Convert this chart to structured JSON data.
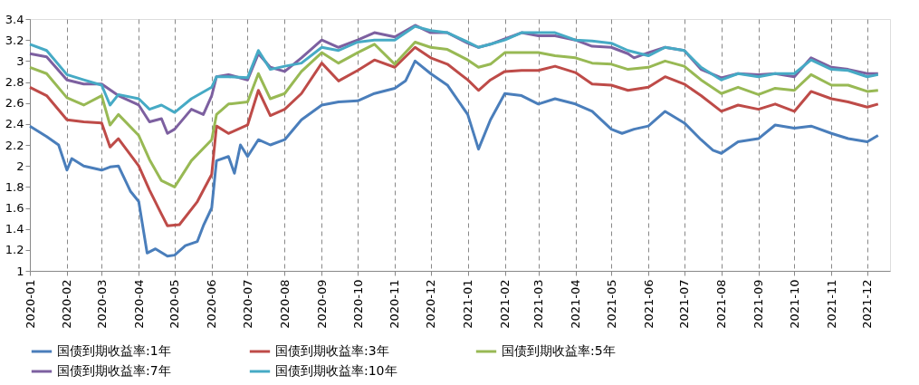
{
  "chart_data": {
    "type": "line",
    "xlim": [
      "2020-01-01",
      "2021-12-20"
    ],
    "xticks": [
      "2020-01",
      "2020-02",
      "2020-03",
      "2020-04",
      "2020-05",
      "2020-06",
      "2020-07",
      "2020-08",
      "2020-09",
      "2020-10",
      "2020-11",
      "2020-12",
      "2021-01",
      "2021-02",
      "2021-03",
      "2021-04",
      "2021-05",
      "2021-06",
      "2021-07",
      "2021-08",
      "2021-09",
      "2021-10",
      "2021-11",
      "2021-12"
    ],
    "ylim": [
      1,
      3.4
    ],
    "yticks": [
      1,
      1.2,
      1.4,
      1.6,
      1.8,
      2,
      2.2,
      2.4,
      2.6,
      2.8,
      3,
      3.2,
      3.4
    ],
    "grid": "x",
    "legend": "bottom",
    "marker": "none",
    "line_style": "solid",
    "series": [
      {
        "name": "国债到期收益率:1年",
        "color": "#4a7ebb",
        "x": [
          "2020-01-01",
          "2020-01-15",
          "2020-01-25",
          "2020-02-01",
          "2020-02-05",
          "2020-02-15",
          "2020-03-01",
          "2020-03-08",
          "2020-03-15",
          "2020-03-25",
          "2020-04-01",
          "2020-04-08",
          "2020-04-15",
          "2020-04-25",
          "2020-05-01",
          "2020-05-10",
          "2020-05-20",
          "2020-05-25",
          "2020-06-01",
          "2020-06-05",
          "2020-06-15",
          "2020-06-20",
          "2020-06-25",
          "2020-07-01",
          "2020-07-10",
          "2020-07-20",
          "2020-08-01",
          "2020-08-15",
          "2020-09-01",
          "2020-09-15",
          "2020-10-01",
          "2020-10-15",
          "2020-11-01",
          "2020-11-10",
          "2020-11-18",
          "2020-12-01",
          "2020-12-15",
          "2021-01-01",
          "2021-01-10",
          "2021-01-20",
          "2021-02-01",
          "2021-02-15",
          "2021-03-01",
          "2021-03-15",
          "2021-04-01",
          "2021-04-15",
          "2021-05-01",
          "2021-05-10",
          "2021-05-20",
          "2021-06-01",
          "2021-06-15",
          "2021-07-01",
          "2021-07-15",
          "2021-07-25",
          "2021-08-01",
          "2021-08-15",
          "2021-09-01",
          "2021-09-15",
          "2021-10-01",
          "2021-10-15",
          "2021-11-01",
          "2021-11-15",
          "2021-12-01",
          "2021-12-10"
        ],
        "values": [
          2.38,
          2.28,
          2.2,
          1.96,
          2.07,
          2.0,
          1.96,
          1.99,
          2.0,
          1.76,
          1.66,
          1.17,
          1.21,
          1.14,
          1.15,
          1.24,
          1.28,
          1.43,
          1.6,
          2.05,
          2.09,
          1.93,
          2.2,
          2.09,
          2.25,
          2.2,
          2.25,
          2.44,
          2.58,
          2.61,
          2.62,
          2.69,
          2.74,
          2.81,
          3.0,
          2.88,
          2.77,
          2.49,
          2.16,
          2.44,
          2.69,
          2.67,
          2.59,
          2.64,
          2.59,
          2.52,
          2.35,
          2.31,
          2.35,
          2.38,
          2.52,
          2.41,
          2.25,
          2.15,
          2.12,
          2.23,
          2.26,
          2.39,
          2.36,
          2.38,
          2.31,
          2.26,
          2.23,
          2.29
        ]
      },
      {
        "name": "国债到期收益率:3年",
        "color": "#be4b48",
        "x": [
          "2020-01-01",
          "2020-01-15",
          "2020-02-01",
          "2020-02-15",
          "2020-03-01",
          "2020-03-08",
          "2020-03-15",
          "2020-04-01",
          "2020-04-10",
          "2020-04-20",
          "2020-04-25",
          "2020-05-05",
          "2020-05-20",
          "2020-06-01",
          "2020-06-05",
          "2020-06-15",
          "2020-07-01",
          "2020-07-10",
          "2020-07-20",
          "2020-08-01",
          "2020-08-15",
          "2020-09-01",
          "2020-09-15",
          "2020-10-01",
          "2020-10-15",
          "2020-11-01",
          "2020-11-18",
          "2020-12-01",
          "2020-12-15",
          "2021-01-01",
          "2021-01-10",
          "2021-01-20",
          "2021-02-01",
          "2021-02-15",
          "2021-03-01",
          "2021-03-15",
          "2021-04-01",
          "2021-04-15",
          "2021-05-01",
          "2021-05-15",
          "2021-06-01",
          "2021-06-15",
          "2021-07-01",
          "2021-07-15",
          "2021-08-01",
          "2021-08-15",
          "2021-09-01",
          "2021-09-15",
          "2021-10-01",
          "2021-10-15",
          "2021-11-01",
          "2021-11-15",
          "2021-12-01",
          "2021-12-10"
        ],
        "values": [
          2.75,
          2.67,
          2.44,
          2.42,
          2.41,
          2.18,
          2.26,
          2.0,
          1.77,
          1.54,
          1.43,
          1.44,
          1.66,
          1.92,
          2.38,
          2.31,
          2.39,
          2.72,
          2.48,
          2.54,
          2.69,
          2.98,
          2.81,
          2.91,
          3.01,
          2.94,
          3.13,
          3.03,
          2.97,
          2.82,
          2.72,
          2.82,
          2.9,
          2.91,
          2.91,
          2.95,
          2.89,
          2.78,
          2.77,
          2.72,
          2.75,
          2.85,
          2.78,
          2.67,
          2.52,
          2.58,
          2.54,
          2.59,
          2.52,
          2.71,
          2.64,
          2.61,
          2.56,
          2.59
        ]
      },
      {
        "name": "国债到期收益率:5年",
        "color": "#98b954",
        "x": [
          "2020-01-01",
          "2020-01-15",
          "2020-02-01",
          "2020-02-15",
          "2020-03-01",
          "2020-03-08",
          "2020-03-15",
          "2020-04-01",
          "2020-04-10",
          "2020-04-20",
          "2020-05-01",
          "2020-05-15",
          "2020-06-01",
          "2020-06-05",
          "2020-06-15",
          "2020-07-01",
          "2020-07-10",
          "2020-07-20",
          "2020-08-01",
          "2020-08-15",
          "2020-09-01",
          "2020-09-15",
          "2020-10-01",
          "2020-10-15",
          "2020-11-01",
          "2020-11-18",
          "2020-12-01",
          "2020-12-15",
          "2021-01-01",
          "2021-01-10",
          "2021-01-20",
          "2021-02-01",
          "2021-02-15",
          "2021-03-01",
          "2021-03-15",
          "2021-04-01",
          "2021-04-15",
          "2021-05-01",
          "2021-05-15",
          "2021-06-01",
          "2021-06-15",
          "2021-07-01",
          "2021-07-15",
          "2021-08-01",
          "2021-08-15",
          "2021-09-01",
          "2021-09-15",
          "2021-10-01",
          "2021-10-15",
          "2021-11-01",
          "2021-11-15",
          "2021-12-01",
          "2021-12-10"
        ],
        "values": [
          2.94,
          2.88,
          2.65,
          2.58,
          2.67,
          2.39,
          2.49,
          2.29,
          2.06,
          1.86,
          1.8,
          2.05,
          2.25,
          2.49,
          2.59,
          2.61,
          2.88,
          2.64,
          2.69,
          2.9,
          3.08,
          2.98,
          3.08,
          3.16,
          2.97,
          3.18,
          3.13,
          3.11,
          3.01,
          2.94,
          2.97,
          3.08,
          3.08,
          3.08,
          3.05,
          3.03,
          2.98,
          2.97,
          2.92,
          2.94,
          3.0,
          2.95,
          2.82,
          2.69,
          2.75,
          2.68,
          2.74,
          2.72,
          2.87,
          2.77,
          2.77,
          2.71,
          2.72
        ]
      },
      {
        "name": "国债到期收益率:7年",
        "color": "#7d60a0",
        "x": [
          "2020-01-01",
          "2020-01-15",
          "2020-02-01",
          "2020-02-15",
          "2020-03-01",
          "2020-03-15",
          "2020-04-01",
          "2020-04-10",
          "2020-04-20",
          "2020-04-25",
          "2020-05-01",
          "2020-05-15",
          "2020-05-25",
          "2020-06-01",
          "2020-06-05",
          "2020-06-15",
          "2020-07-01",
          "2020-07-10",
          "2020-07-20",
          "2020-08-01",
          "2020-08-15",
          "2020-09-01",
          "2020-09-15",
          "2020-10-01",
          "2020-10-15",
          "2020-11-01",
          "2020-11-18",
          "2020-12-01",
          "2020-12-15",
          "2021-01-01",
          "2021-01-10",
          "2021-01-20",
          "2021-02-01",
          "2021-02-15",
          "2021-03-01",
          "2021-03-15",
          "2021-04-01",
          "2021-04-15",
          "2021-05-01",
          "2021-05-15",
          "2021-05-20",
          "2021-06-01",
          "2021-06-15",
          "2021-07-01",
          "2021-07-15",
          "2021-08-01",
          "2021-08-15",
          "2021-09-01",
          "2021-09-15",
          "2021-10-01",
          "2021-10-15",
          "2021-11-01",
          "2021-11-15",
          "2021-12-01",
          "2021-12-10"
        ],
        "values": [
          3.07,
          3.04,
          2.82,
          2.78,
          2.78,
          2.67,
          2.58,
          2.42,
          2.45,
          2.31,
          2.35,
          2.54,
          2.49,
          2.67,
          2.85,
          2.87,
          2.82,
          3.07,
          2.94,
          2.9,
          3.03,
          3.2,
          3.13,
          3.2,
          3.27,
          3.23,
          3.34,
          3.27,
          3.27,
          3.17,
          3.13,
          3.16,
          3.21,
          3.27,
          3.24,
          3.24,
          3.2,
          3.14,
          3.13,
          3.07,
          3.03,
          3.08,
          3.13,
          3.1,
          2.92,
          2.84,
          2.88,
          2.87,
          2.88,
          2.85,
          3.03,
          2.94,
          2.92,
          2.88,
          2.88
        ]
      },
      {
        "name": "国债到期收益率:10年",
        "color": "#46aac5",
        "x": [
          "2020-01-01",
          "2020-01-15",
          "2020-02-01",
          "2020-02-15",
          "2020-03-01",
          "2020-03-08",
          "2020-03-15",
          "2020-04-01",
          "2020-04-10",
          "2020-04-20",
          "2020-05-01",
          "2020-05-15",
          "2020-06-01",
          "2020-06-05",
          "2020-06-15",
          "2020-07-01",
          "2020-07-10",
          "2020-07-20",
          "2020-08-01",
          "2020-08-15",
          "2020-09-01",
          "2020-09-15",
          "2020-10-01",
          "2020-10-15",
          "2020-11-01",
          "2020-11-18",
          "2020-12-01",
          "2020-12-15",
          "2021-01-01",
          "2021-01-10",
          "2021-01-20",
          "2021-02-01",
          "2021-02-15",
          "2021-03-01",
          "2021-03-15",
          "2021-04-01",
          "2021-04-15",
          "2021-05-01",
          "2021-05-15",
          "2021-06-01",
          "2021-06-15",
          "2021-07-01",
          "2021-07-15",
          "2021-08-01",
          "2021-08-15",
          "2021-09-01",
          "2021-09-15",
          "2021-10-01",
          "2021-10-15",
          "2021-11-01",
          "2021-11-15",
          "2021-12-01",
          "2021-12-10"
        ],
        "values": [
          3.16,
          3.1,
          2.87,
          2.82,
          2.77,
          2.58,
          2.68,
          2.64,
          2.54,
          2.58,
          2.51,
          2.64,
          2.75,
          2.85,
          2.85,
          2.84,
          3.1,
          2.92,
          2.95,
          2.98,
          3.13,
          3.1,
          3.18,
          3.2,
          3.2,
          3.33,
          3.29,
          3.27,
          3.18,
          3.13,
          3.16,
          3.2,
          3.27,
          3.27,
          3.27,
          3.2,
          3.19,
          3.17,
          3.1,
          3.05,
          3.13,
          3.1,
          2.94,
          2.82,
          2.88,
          2.85,
          2.88,
          2.88,
          3.01,
          2.92,
          2.91,
          2.85,
          2.87
        ]
      }
    ]
  }
}
